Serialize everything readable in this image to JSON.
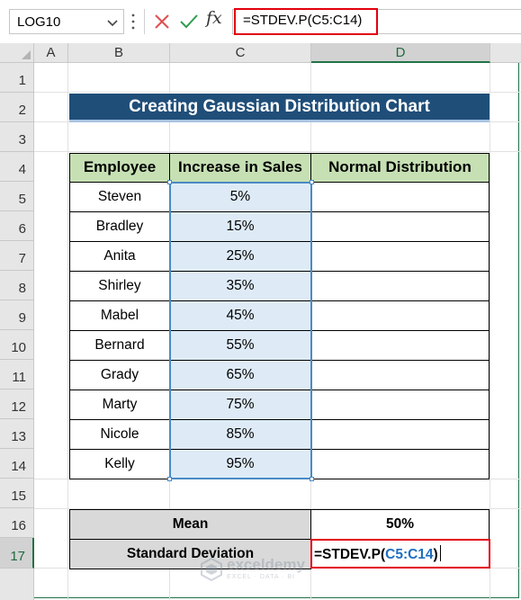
{
  "formula_bar": {
    "name_box": "LOG10",
    "fx_label": "fx",
    "formula": "=STDEV.P(C5:C14)"
  },
  "columns": [
    "A",
    "B",
    "C",
    "D"
  ],
  "rows": [
    "1",
    "2",
    "3",
    "4",
    "5",
    "6",
    "7",
    "8",
    "9",
    "10",
    "11",
    "12",
    "13",
    "14",
    "15",
    "16",
    "17"
  ],
  "sheet": {
    "title": "Creating Gaussian Distribution Chart",
    "headers": [
      "Employee",
      "Increase in Sales",
      "Normal Distribution"
    ],
    "data": [
      {
        "employee": "Steven",
        "increase": "5%"
      },
      {
        "employee": "Bradley",
        "increase": "15%"
      },
      {
        "employee": "Anita",
        "increase": "25%"
      },
      {
        "employee": "Shirley",
        "increase": "35%"
      },
      {
        "employee": "Mabel",
        "increase": "45%"
      },
      {
        "employee": "Bernard",
        "increase": "55%"
      },
      {
        "employee": "Grady",
        "increase": "65%"
      },
      {
        "employee": "Marty",
        "increase": "75%"
      },
      {
        "employee": "Nicole",
        "increase": "85%"
      },
      {
        "employee": "Kelly",
        "increase": "95%"
      }
    ],
    "mean_label": "Mean",
    "mean_value": "50%",
    "std_label": "Standard Deviation",
    "std_formula_prefix": "=STDEV.P(",
    "std_formula_ref": "C5:C14",
    "std_formula_suffix": ")"
  },
  "watermark": {
    "name": "exceldemy",
    "tagline": "EXCEL · DATA · BI"
  },
  "colors": {
    "title_bg": "#1f4e79",
    "header_bg": "#c6e0b4",
    "selection_fill": "#deebf7",
    "stat_label_bg": "#d9d9d9",
    "highlight_red": "#e3000f",
    "excel_green": "#217346"
  }
}
